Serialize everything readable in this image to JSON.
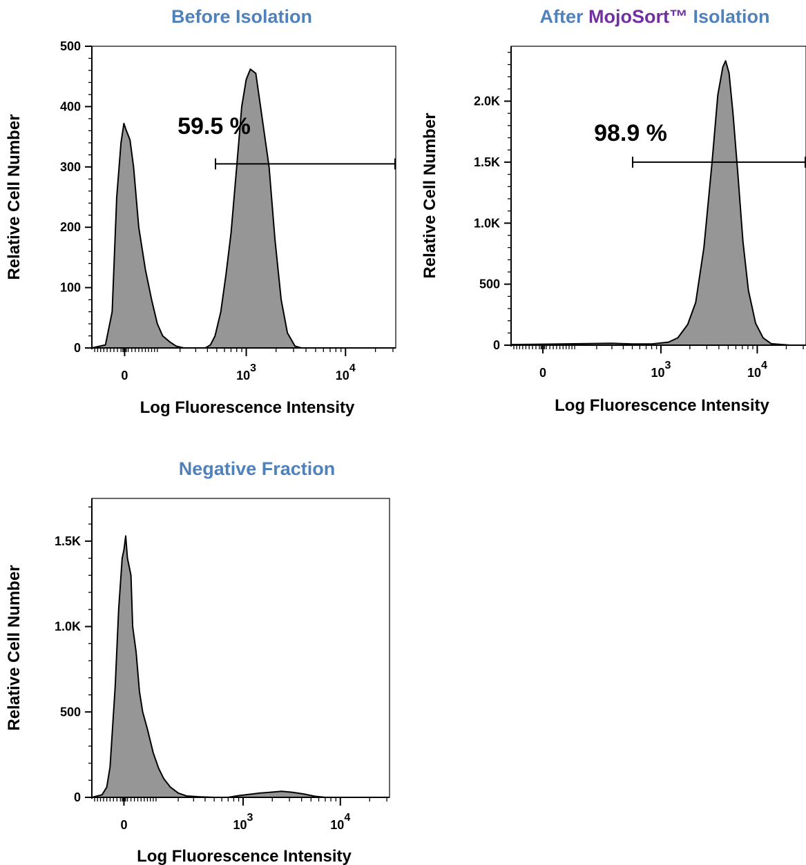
{
  "chart_data": [
    {
      "type": "area",
      "title": "Before Isolation",
      "xlabel": "Log Fluorescence Intensity",
      "ylabel": "Relative Cell Number",
      "xscale": "biexponential",
      "x_tick_labels": [
        "0",
        "10",
        "10"
      ],
      "x_tick_exponents": [
        "",
        "3",
        "4"
      ],
      "y_ticks": [
        0,
        100,
        200,
        300,
        400,
        500
      ],
      "y_tick_labels": [
        "0",
        "100",
        "200",
        "300",
        "400",
        "500"
      ],
      "ylim": [
        0,
        500
      ],
      "gate": {
        "label": "59.5 %",
        "level": 305
      },
      "series": [
        {
          "points": [
            [
              -100,
              0
            ],
            [
              -55,
              5
            ],
            [
              -35,
              60
            ],
            [
              -22,
              250
            ],
            [
              -10,
              340
            ],
            [
              -2,
              372
            ],
            [
              5,
              360
            ],
            [
              15,
              345
            ],
            [
              25,
              300
            ],
            [
              40,
              200
            ],
            [
              60,
              130
            ],
            [
              80,
              80
            ],
            [
              100,
              40
            ],
            [
              120,
              20
            ],
            [
              150,
              10
            ],
            [
              180,
              3
            ],
            [
              220,
              0
            ],
            [
              380,
              0
            ],
            [
              430,
              5
            ],
            [
              480,
              20
            ],
            [
              550,
              60
            ],
            [
              620,
              120
            ],
            [
              700,
              190
            ],
            [
              800,
              300
            ],
            [
              900,
              400
            ],
            [
              1000,
              445
            ],
            [
              1100,
              462
            ],
            [
              1250,
              455
            ],
            [
              1450,
              380
            ],
            [
              1700,
              300
            ],
            [
              1950,
              180
            ],
            [
              2250,
              80
            ],
            [
              2600,
              25
            ],
            [
              3100,
              3
            ],
            [
              3600,
              0
            ],
            [
              12000,
              0
            ],
            [
              22000,
              0
            ]
          ]
        }
      ]
    },
    {
      "type": "area",
      "title_parts": [
        "After ",
        "MojoSort™",
        " Isolation"
      ],
      "xlabel": "Log Fluorescence Intensity",
      "ylabel": "Relative Cell Number",
      "xscale": "biexponential",
      "x_tick_labels": [
        "0",
        "10",
        "10"
      ],
      "x_tick_exponents": [
        "",
        "3",
        "4"
      ],
      "y_ticks": [
        0,
        500,
        1000,
        1500,
        2000
      ],
      "y_tick_labels": [
        "0",
        "500",
        "1.0K",
        "1.5K",
        "2.0K"
      ],
      "ylim": [
        0,
        2450
      ],
      "gate": {
        "label": "98.9 %",
        "level": 1500
      },
      "series": [
        {
          "points": [
            [
              -100,
              5
            ],
            [
              0,
              8
            ],
            [
              300,
              15
            ],
            [
              500,
              10
            ],
            [
              800,
              10
            ],
            [
              1200,
              25
            ],
            [
              1500,
              60
            ],
            [
              1900,
              170
            ],
            [
              2300,
              350
            ],
            [
              2800,
              800
            ],
            [
              3400,
              1500
            ],
            [
              3900,
              2050
            ],
            [
              4400,
              2280
            ],
            [
              4700,
              2330
            ],
            [
              5100,
              2230
            ],
            [
              5600,
              1900
            ],
            [
              6300,
              1400
            ],
            [
              7100,
              850
            ],
            [
              8100,
              450
            ],
            [
              9600,
              180
            ],
            [
              11500,
              60
            ],
            [
              14000,
              12
            ],
            [
              22000,
              0
            ]
          ]
        }
      ]
    },
    {
      "type": "area",
      "title": "Negative Fraction",
      "xlabel": "Log Fluorescence Intensity",
      "ylabel": "Relative Cell Number",
      "xscale": "biexponential",
      "x_tick_labels": [
        "0",
        "10",
        "10"
      ],
      "x_tick_exponents": [
        "",
        "3",
        "4"
      ],
      "y_ticks": [
        0,
        500,
        1000,
        1500
      ],
      "y_tick_labels": [
        "0",
        "500",
        "1.0K",
        "1.5K"
      ],
      "ylim": [
        0,
        1750
      ],
      "series": [
        {
          "points": [
            [
              -100,
              0
            ],
            [
              -65,
              15
            ],
            [
              -50,
              60
            ],
            [
              -40,
              180
            ],
            [
              -25,
              650
            ],
            [
              -15,
              1100
            ],
            [
              -5,
              1400
            ],
            [
              0,
              1450
            ],
            [
              5,
              1530
            ],
            [
              10,
              1400
            ],
            [
              15,
              1350
            ],
            [
              20,
              1300
            ],
            [
              25,
              1000
            ],
            [
              35,
              850
            ],
            [
              45,
              620
            ],
            [
              55,
              500
            ],
            [
              70,
              400
            ],
            [
              90,
              260
            ],
            [
              110,
              170
            ],
            [
              130,
              110
            ],
            [
              160,
              60
            ],
            [
              200,
              25
            ],
            [
              250,
              8
            ],
            [
              350,
              3
            ],
            [
              500,
              0
            ],
            [
              700,
              0
            ],
            [
              900,
              10
            ],
            [
              1500,
              25
            ],
            [
              2500,
              35
            ],
            [
              3200,
              30
            ],
            [
              4200,
              20
            ],
            [
              5500,
              6
            ],
            [
              7000,
              0
            ],
            [
              22000,
              0
            ]
          ]
        }
      ]
    }
  ]
}
